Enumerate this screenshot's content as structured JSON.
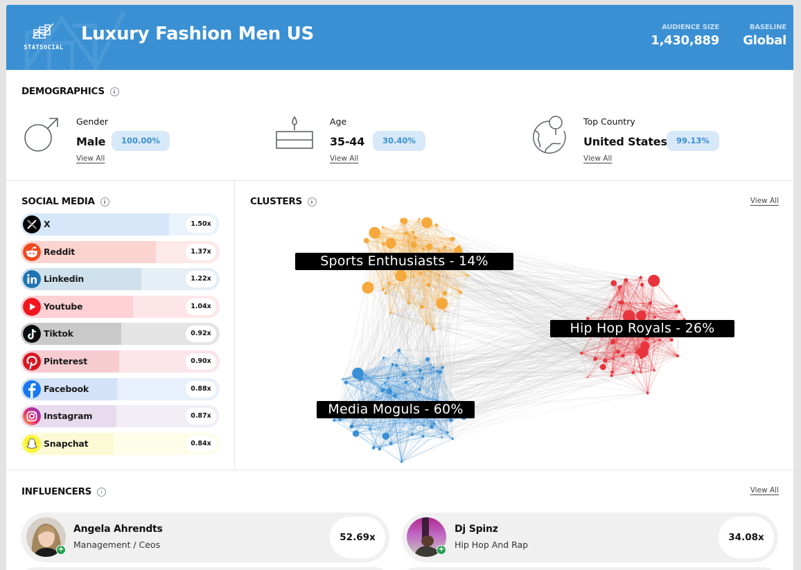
{
  "header": {
    "logo_text": "STATSOCIAL",
    "title": "Luxury Fashion Men US",
    "audience_size_label": "AUDIENCE SIZE",
    "audience_size": "1,430,889",
    "baseline_label": "BASELINE",
    "baseline": "Global",
    "accent_color": "#3a90d3"
  },
  "demographics": {
    "title": "DEMOGRAPHICS",
    "items": [
      {
        "label": "Gender",
        "value": "Male",
        "percent": "100.00%",
        "link": "View All",
        "icon": "male-symbol-icon"
      },
      {
        "label": "Age",
        "value": "35-44",
        "percent": "30.40%",
        "link": "View All",
        "icon": "birthday-cake-icon"
      },
      {
        "label": "Top Country",
        "value": "United States",
        "percent": "99.13%",
        "link": "View All",
        "icon": "globe-pin-icon"
      }
    ]
  },
  "social_media": {
    "title": "SOCIAL MEDIA",
    "items": [
      {
        "name": "X",
        "value": "1.50x",
        "index": 1.5,
        "icon": "x-logo-icon",
        "bar_color": "#d5e7f8",
        "bg_color": "#e9f3fc"
      },
      {
        "name": "Reddit",
        "value": "1.37x",
        "index": 1.37,
        "icon": "reddit-logo-icon",
        "bar_color": "#fcd4cf",
        "bg_color": "#fde9e7"
      },
      {
        "name": "Linkedin",
        "value": "1.22x",
        "index": 1.22,
        "icon": "linkedin-logo-icon",
        "bar_color": "#d0e1ee",
        "bg_color": "#e6eff6"
      },
      {
        "name": "Youtube",
        "value": "1.04x",
        "index": 1.04,
        "icon": "youtube-logo-icon",
        "bar_color": "#fdd0d4",
        "bg_color": "#fee6e8"
      },
      {
        "name": "Tiktok",
        "value": "0.92x",
        "index": 0.92,
        "icon": "tiktok-logo-icon",
        "bar_color": "#c9c9c9",
        "bg_color": "#e4e4e4"
      },
      {
        "name": "Pinterest",
        "value": "0.90x",
        "index": 0.9,
        "icon": "pinterest-logo-icon",
        "bar_color": "#f6ccd1",
        "bg_color": "#fbe5e8"
      },
      {
        "name": "Facebook",
        "value": "0.88x",
        "index": 0.88,
        "icon": "facebook-logo-icon",
        "bar_color": "#d3e2f8",
        "bg_color": "#e8f0fb"
      },
      {
        "name": "Instagram",
        "value": "0.87x",
        "index": 0.87,
        "icon": "instagram-logo-icon",
        "bar_color": "#e8dbee",
        "bg_color": "#f3edf6"
      },
      {
        "name": "Snapchat",
        "value": "0.84x",
        "index": 0.84,
        "icon": "snapchat-logo-icon",
        "bar_color": "#fcfad4",
        "bg_color": "#fefde9"
      }
    ]
  },
  "clusters": {
    "title": "CLUSTERS",
    "link": "View All",
    "items": [
      {
        "name": "Sports Enthusiasts",
        "share": 14,
        "label": "Sports Enthusiasts - 14%",
        "color": "#f5a93b"
      },
      {
        "name": "Hip Hop Royals",
        "share": 26,
        "label": "Hip Hop Royals - 26%",
        "color": "#e8343c"
      },
      {
        "name": "Media Moguls",
        "share": 60,
        "label": "Media Moguls - 60%",
        "color": "#3a8fd6"
      }
    ]
  },
  "influencers": {
    "title": "INFLUENCERS",
    "link": "View All",
    "items": [
      {
        "name": "Angela Ahrendts",
        "category": "Management / Ceos",
        "score": "52.69x"
      },
      {
        "name": "Dj Spinz",
        "category": "Hip Hop And Rap",
        "score": "34.08x"
      }
    ]
  }
}
